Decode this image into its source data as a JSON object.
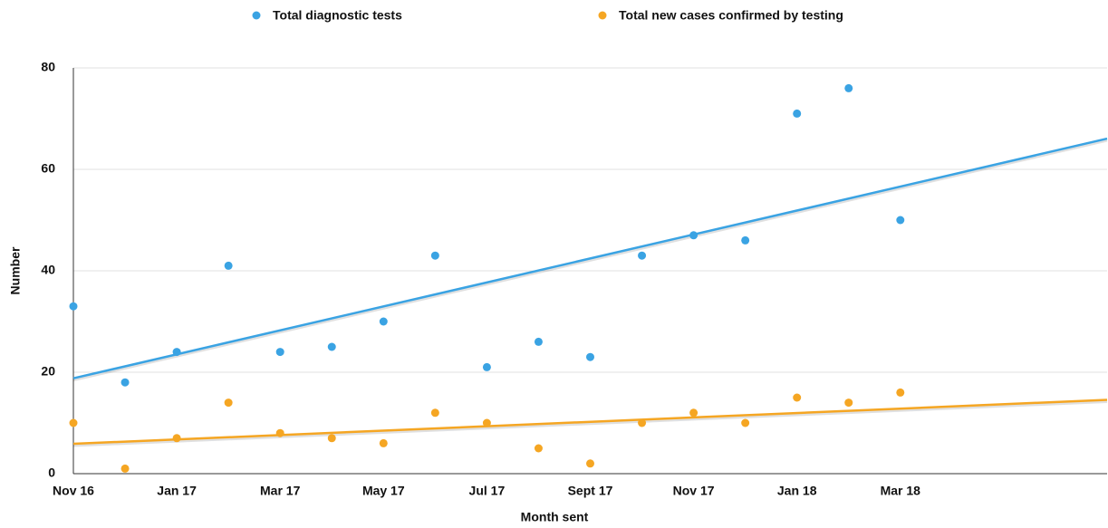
{
  "chart_data": {
    "type": "scatter",
    "x_label": "Month sent",
    "y_label": "Number",
    "categories": [
      "Nov 16",
      null,
      "Jan 17",
      null,
      "Mar 17",
      null,
      "May 17",
      null,
      "Jul 17",
      null,
      "Sept 17",
      null,
      "Nov 17",
      null,
      "Jan 18",
      null,
      "Mar 18"
    ],
    "xlim": [
      0,
      20
    ],
    "series": [
      {
        "name": "Total diagnostic tests",
        "color": "#3aa3e3",
        "values": [
          33,
          18,
          24,
          41,
          24,
          25,
          30,
          43,
          21,
          26,
          23,
          43,
          47,
          46,
          71,
          76,
          50
        ]
      },
      {
        "name": "Total new cases confirmed by testing",
        "color": "#f5a623",
        "values": [
          10,
          1,
          7,
          14,
          8,
          7,
          6,
          12,
          10,
          5,
          2,
          10,
          12,
          10,
          15,
          14,
          16
        ]
      }
    ],
    "ylim": [
      0,
      80
    ],
    "yticks": [
      0,
      20,
      40,
      60,
      80
    ],
    "grid": true,
    "trendline": true,
    "legend": "top"
  }
}
